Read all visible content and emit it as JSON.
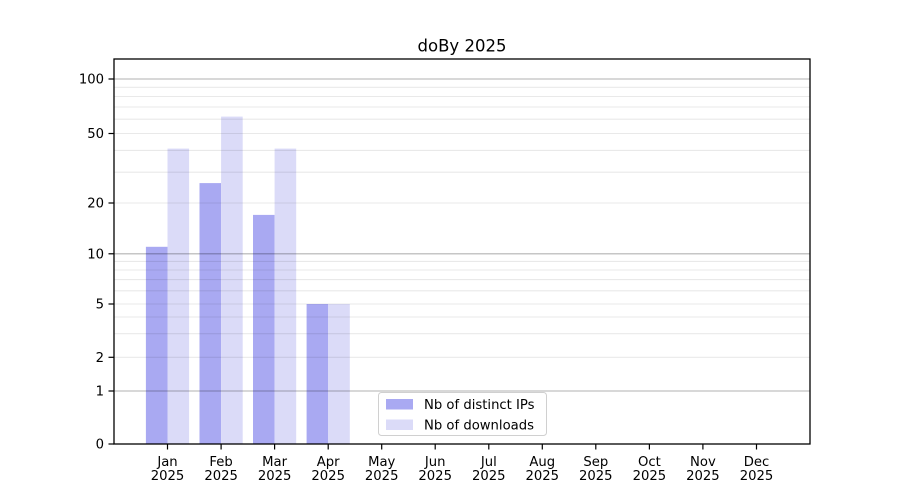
{
  "chart_data": {
    "type": "bar",
    "title": "doBy 2025",
    "months": [
      "Jan",
      "Feb",
      "Mar",
      "Apr",
      "May",
      "Jun",
      "Jul",
      "Aug",
      "Sep",
      "Oct",
      "Nov",
      "Dec"
    ],
    "year_label": "2025",
    "series": [
      {
        "name": "Nb of distinct IPs",
        "color": "#a9a9f2",
        "values": [
          11,
          26,
          17,
          5,
          0,
          0,
          0,
          0,
          0,
          0,
          0,
          0
        ]
      },
      {
        "name": "Nb of downloads",
        "color": "#dbdbf8",
        "values": [
          41,
          62,
          41,
          5,
          0,
          0,
          0,
          0,
          0,
          0,
          0,
          0
        ]
      }
    ],
    "y_ticks": [
      0,
      1,
      2,
      5,
      10,
      20,
      50,
      100
    ],
    "y_major_gridlines": [
      1,
      10,
      100
    ],
    "y_minor_gridlines": [
      2,
      3,
      4,
      5,
      6,
      7,
      8,
      9,
      20,
      30,
      40,
      50,
      60,
      70,
      80,
      90
    ],
    "ylim": [
      0,
      125
    ],
    "y_scale": "log-like above 1, linear 0-1",
    "grid": true,
    "legend_position": "lower center inside plot",
    "colors": {
      "axis": "#000000",
      "major_grid": "#b3b3b3",
      "minor_grid": "#ebebeb",
      "legend_border": "#d0d0d0",
      "background": "#ffffff"
    }
  }
}
